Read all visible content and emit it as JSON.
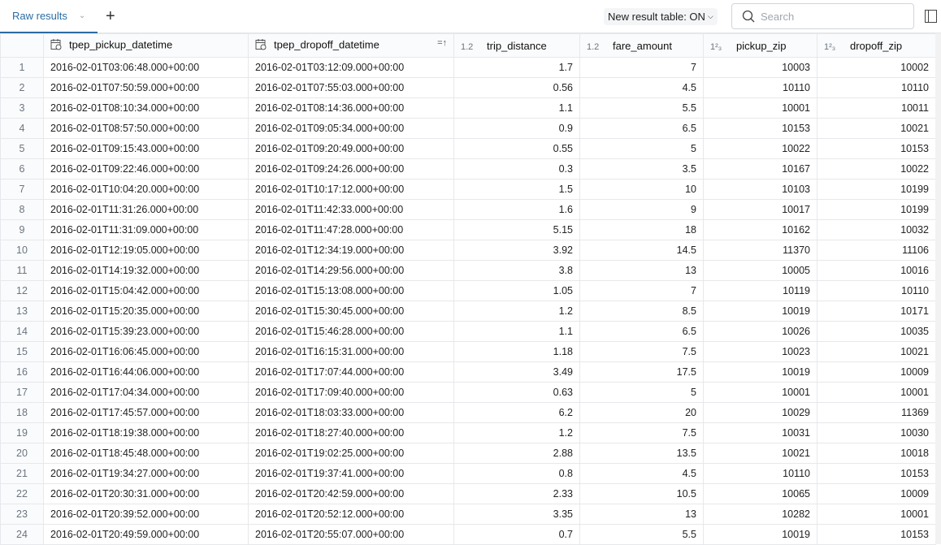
{
  "topbar": {
    "tab_label": "Raw results",
    "toggle_label": "New result table: ON",
    "search_placeholder": "Search"
  },
  "columns": [
    {
      "name": "tpep_pickup_datetime",
      "type_icon": "calendar-clock-icon"
    },
    {
      "name": "tpep_dropoff_datetime",
      "type_icon": "calendar-clock-icon",
      "sort": "sort-ascending-icon"
    },
    {
      "name": "trip_distance",
      "type_icon": "1.2"
    },
    {
      "name": "fare_amount",
      "type_icon": "1.2"
    },
    {
      "name": "pickup_zip",
      "type_icon": "1²₃"
    },
    {
      "name": "dropoff_zip",
      "type_icon": "1²₃"
    }
  ],
  "rows": [
    [
      "2016-02-01T03:06:48.000+00:00",
      "2016-02-01T03:12:09.000+00:00",
      "1.7",
      "7",
      "10003",
      "10002"
    ],
    [
      "2016-02-01T07:50:59.000+00:00",
      "2016-02-01T07:55:03.000+00:00",
      "0.56",
      "4.5",
      "10110",
      "10110"
    ],
    [
      "2016-02-01T08:10:34.000+00:00",
      "2016-02-01T08:14:36.000+00:00",
      "1.1",
      "5.5",
      "10001",
      "10011"
    ],
    [
      "2016-02-01T08:57:50.000+00:00",
      "2016-02-01T09:05:34.000+00:00",
      "0.9",
      "6.5",
      "10153",
      "10021"
    ],
    [
      "2016-02-01T09:15:43.000+00:00",
      "2016-02-01T09:20:49.000+00:00",
      "0.55",
      "5",
      "10022",
      "10153"
    ],
    [
      "2016-02-01T09:22:46.000+00:00",
      "2016-02-01T09:24:26.000+00:00",
      "0.3",
      "3.5",
      "10167",
      "10022"
    ],
    [
      "2016-02-01T10:04:20.000+00:00",
      "2016-02-01T10:17:12.000+00:00",
      "1.5",
      "10",
      "10103",
      "10199"
    ],
    [
      "2016-02-01T11:31:26.000+00:00",
      "2016-02-01T11:42:33.000+00:00",
      "1.6",
      "9",
      "10017",
      "10199"
    ],
    [
      "2016-02-01T11:31:09.000+00:00",
      "2016-02-01T11:47:28.000+00:00",
      "5.15",
      "18",
      "10162",
      "10032"
    ],
    [
      "2016-02-01T12:19:05.000+00:00",
      "2016-02-01T12:34:19.000+00:00",
      "3.92",
      "14.5",
      "11370",
      "11106"
    ],
    [
      "2016-02-01T14:19:32.000+00:00",
      "2016-02-01T14:29:56.000+00:00",
      "3.8",
      "13",
      "10005",
      "10016"
    ],
    [
      "2016-02-01T15:04:42.000+00:00",
      "2016-02-01T15:13:08.000+00:00",
      "1.05",
      "7",
      "10119",
      "10110"
    ],
    [
      "2016-02-01T15:20:35.000+00:00",
      "2016-02-01T15:30:45.000+00:00",
      "1.2",
      "8.5",
      "10019",
      "10171"
    ],
    [
      "2016-02-01T15:39:23.000+00:00",
      "2016-02-01T15:46:28.000+00:00",
      "1.1",
      "6.5",
      "10026",
      "10035"
    ],
    [
      "2016-02-01T16:06:45.000+00:00",
      "2016-02-01T16:15:31.000+00:00",
      "1.18",
      "7.5",
      "10023",
      "10021"
    ],
    [
      "2016-02-01T16:44:06.000+00:00",
      "2016-02-01T17:07:44.000+00:00",
      "3.49",
      "17.5",
      "10019",
      "10009"
    ],
    [
      "2016-02-01T17:04:34.000+00:00",
      "2016-02-01T17:09:40.000+00:00",
      "0.63",
      "5",
      "10001",
      "10001"
    ],
    [
      "2016-02-01T17:45:57.000+00:00",
      "2016-02-01T18:03:33.000+00:00",
      "6.2",
      "20",
      "10029",
      "11369"
    ],
    [
      "2016-02-01T18:19:38.000+00:00",
      "2016-02-01T18:27:40.000+00:00",
      "1.2",
      "7.5",
      "10031",
      "10030"
    ],
    [
      "2016-02-01T18:45:48.000+00:00",
      "2016-02-01T19:02:25.000+00:00",
      "2.88",
      "13.5",
      "10021",
      "10018"
    ],
    [
      "2016-02-01T19:34:27.000+00:00",
      "2016-02-01T19:37:41.000+00:00",
      "0.8",
      "4.5",
      "10110",
      "10153"
    ],
    [
      "2016-02-01T20:30:31.000+00:00",
      "2016-02-01T20:42:59.000+00:00",
      "2.33",
      "10.5",
      "10065",
      "10009"
    ],
    [
      "2016-02-01T20:39:52.000+00:00",
      "2016-02-01T20:52:12.000+00:00",
      "3.35",
      "13",
      "10282",
      "10001"
    ],
    [
      "2016-02-01T20:49:59.000+00:00",
      "2016-02-01T20:55:07.000+00:00",
      "0.7",
      "5.5",
      "10019",
      "10153"
    ]
  ]
}
